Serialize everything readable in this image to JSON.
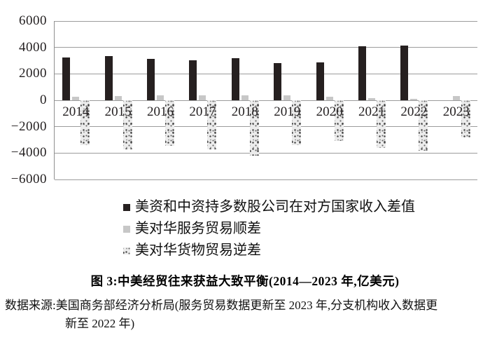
{
  "figure": {
    "title": "图 3:中美经贸往来获益大致平衡(2014—2023 年,亿美元)",
    "source_line1": "数据来源:美国商务部经济分析局(服务贸易数据更新至 2023 年,分支机构收入数据更",
    "source_line2": "新至 2022 年)"
  },
  "chart_data": {
    "type": "bar",
    "unit": "亿美元",
    "categories": [
      "2014",
      "2015",
      "2016",
      "2017",
      "2018",
      "2019",
      "2020",
      "2021",
      "2022",
      "2023"
    ],
    "series": [
      {
        "name": "美资和中资持多数股公司在对方国家收入差值",
        "style": "solid-black",
        "color": "#262020",
        "values": [
          3240,
          3360,
          3150,
          3040,
          3180,
          2810,
          2850,
          4070,
          4150,
          null
        ]
      },
      {
        "name": "美对华服务贸易顺差",
        "style": "solid-gray",
        "color": "#c7c7c7",
        "values": [
          290,
          310,
          370,
          390,
          400,
          360,
          260,
          150,
          130,
          300
        ]
      },
      {
        "name": "美对华货物贸易逆差",
        "style": "speckled",
        "color": "#ececec",
        "values": [
          -3400,
          -3700,
          -3430,
          -3720,
          -4210,
          -3400,
          -3100,
          -3600,
          -3840,
          -2830
        ]
      }
    ],
    "ylim": [
      -6000,
      6000
    ],
    "ytick_interval": 2000,
    "ytick_labels": [
      "6000",
      "4000",
      "2000",
      "0",
      "−2000",
      "−4000",
      "−6000"
    ],
    "grid": true,
    "legend_position": "below-chart"
  }
}
